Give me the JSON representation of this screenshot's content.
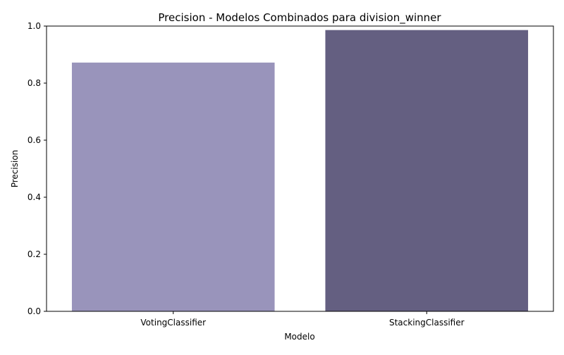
{
  "chart_data": {
    "type": "bar",
    "title": "Precision - Modelos Combinados para division_winner",
    "xlabel": "Modelo",
    "ylabel": "Precision",
    "categories": [
      "VotingClassifier",
      "StackingClassifier"
    ],
    "values": [
      0.872,
      0.986
    ],
    "colors": [
      "#9994bb",
      "#645f81"
    ],
    "ylim": [
      0,
      1.0
    ],
    "yticks": [
      0.0,
      0.2,
      0.4,
      0.6,
      0.8,
      1.0
    ],
    "ytick_labels": [
      "0.0",
      "0.2",
      "0.4",
      "0.6",
      "0.8",
      "1.0"
    ],
    "grid": false,
    "legend": "none"
  }
}
